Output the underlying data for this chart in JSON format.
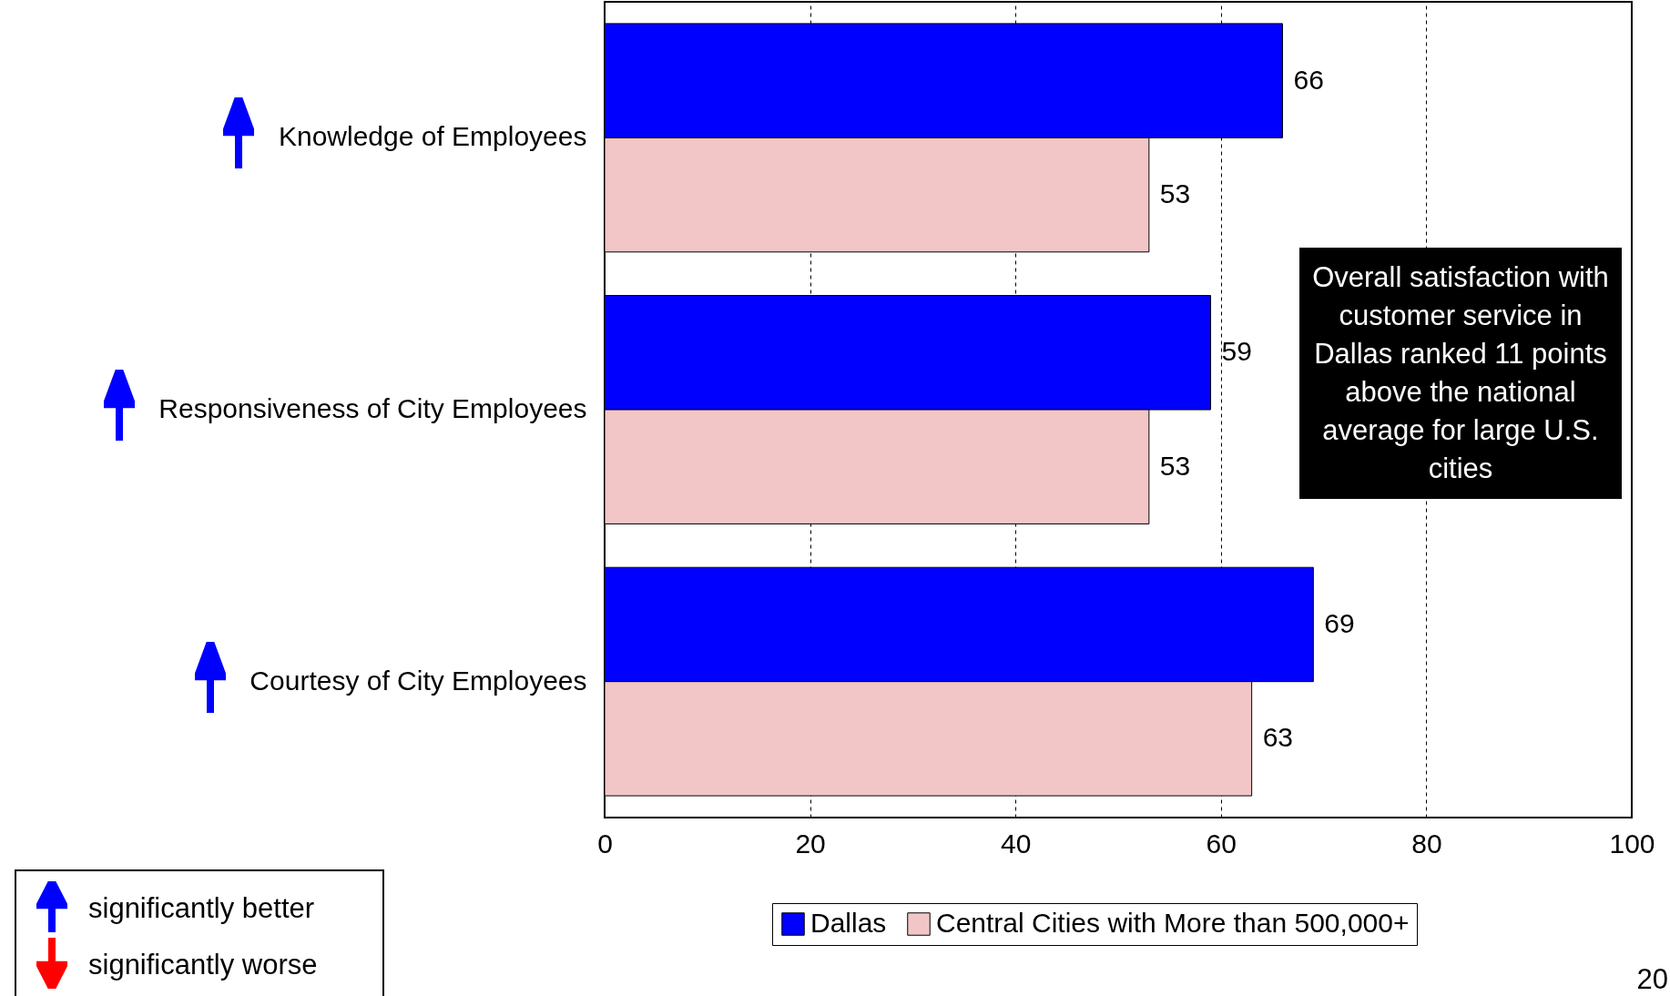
{
  "chart_data": {
    "type": "bar",
    "orientation": "horizontal",
    "categories": [
      "Knowledge of Employees",
      "Responsiveness of City Employees",
      "Courtesy of City Employees"
    ],
    "series": [
      {
        "name": "Dallas",
        "color": "#0000ff",
        "values": [
          66,
          59,
          69
        ]
      },
      {
        "name": "Central Cities with More than 500,000+",
        "color": "#f2c6c6",
        "values": [
          53,
          53,
          63
        ]
      }
    ],
    "xlim": [
      0,
      100
    ],
    "xticks": [
      0,
      20,
      40,
      60,
      80,
      100
    ],
    "grid": "x",
    "data_labels": true,
    "legend": "bottom",
    "annotations": [
      "Overall satisfaction with customer service in Dallas ranked 11 points above the national average for large U.S. cities",
      "significantly better",
      "significantly worse",
      "20"
    ]
  }
}
